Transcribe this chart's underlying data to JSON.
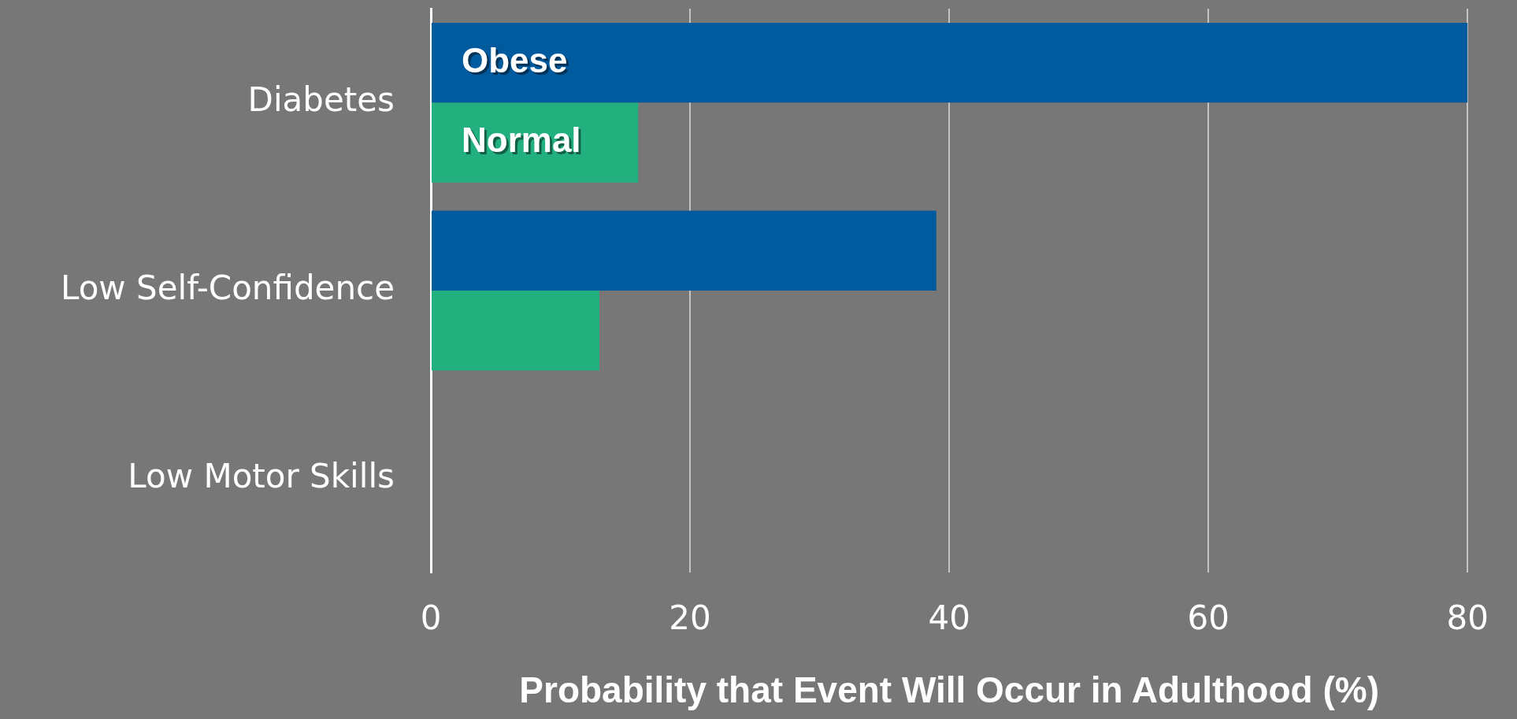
{
  "chart_data": {
    "type": "bar",
    "orientation": "horizontal",
    "categories": [
      "Diabetes",
      "Low Self-Confidence",
      "Low Motor Skills"
    ],
    "series": [
      {
        "name": "Obese",
        "color": "#005a9e",
        "values": [
          80,
          39,
          null
        ]
      },
      {
        "name": "Normal",
        "color": "#22b07f",
        "values": [
          16,
          13,
          null
        ]
      }
    ],
    "xlabel": "Probability that Event Will Occur in Adulthood (%)",
    "xlim": [
      0,
      80
    ],
    "xticks": [
      0,
      20,
      40,
      60,
      80
    ],
    "grid": "x",
    "legend": false
  }
}
